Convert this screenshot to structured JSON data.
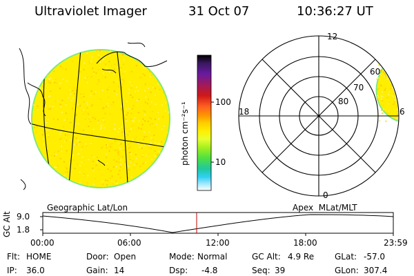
{
  "header": {
    "instrument": "Ultraviolet Imager",
    "date": "31 Oct 07",
    "time": "10:36:27 UT"
  },
  "colorbar": {
    "label": "photon cm⁻²s⁻¹",
    "ticks": [
      "100",
      "10"
    ],
    "colors": [
      "#000000",
      "#3a1860",
      "#6a1aa0",
      "#a01a5a",
      "#d01818",
      "#ff6020",
      "#ff9900",
      "#ffcc00",
      "#ffee00",
      "#e8ff30",
      "#a8f020",
      "#50e040",
      "#20c8a0",
      "#30d0f0",
      "#a0e8ff",
      "#ffffff"
    ]
  },
  "panels": {
    "left_label": "Geographic Lat/Lon",
    "right_label": "Apex  MLat/MLT"
  },
  "geo_map": {
    "disk_color": "#ffee00",
    "rim_color": "#7ee87e"
  },
  "polar_plot": {
    "mlt_labels": {
      "top": "12",
      "left": "18",
      "right": "6",
      "bottom": "0"
    },
    "lat_labels": [
      "60",
      "70",
      "80"
    ]
  },
  "timeline": {
    "ylabel": "GC Alt",
    "yticks": [
      "9.0",
      "1.8"
    ],
    "xticks": [
      "00:00",
      "06:00",
      "12:00",
      "18:00",
      "23:59"
    ],
    "current_marker_color": "#c00000"
  },
  "info": {
    "flt": {
      "label": "Flt:",
      "value": "HOME"
    },
    "ip": {
      "label": "IP:",
      "value": "36.0"
    },
    "door": {
      "label": "Door:",
      "value": "Open"
    },
    "gain": {
      "label": "Gain:",
      "value": "14"
    },
    "mode": {
      "label": "Mode:",
      "value": "Normal"
    },
    "dsp": {
      "label": "Dsp:",
      "value": "-4.8"
    },
    "gc_alt": {
      "label": "GC Alt:",
      "value": "4.9 Re"
    },
    "seq": {
      "label": "Seq:",
      "value": "39"
    },
    "glat": {
      "label": "GLat:",
      "value": "-57.0"
    },
    "glon": {
      "label": "GLon:",
      "value": "307.4"
    }
  }
}
